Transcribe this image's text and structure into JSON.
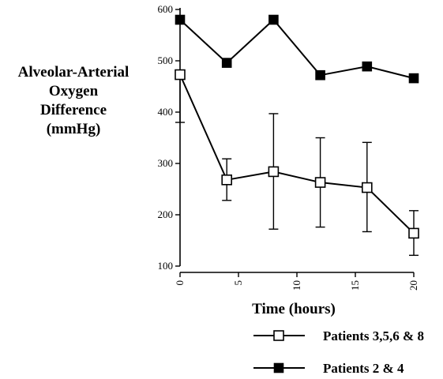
{
  "chart_data": {
    "type": "line",
    "title": "",
    "xlabel": "Time (hours)",
    "ylabel_lines": [
      "Alveolar-Arterial",
      "Oxygen",
      "Difference",
      "(mmHg)"
    ],
    "xlim": [
      0,
      20
    ],
    "ylim": [
      100,
      600
    ],
    "xticks": [
      0,
      5,
      10,
      15,
      20
    ],
    "yticks": [
      100,
      200,
      300,
      400,
      500,
      600
    ],
    "grid": false,
    "legend_position": "bottom-right",
    "series": [
      {
        "name": "Patients 3,5,6 & 8",
        "marker": "open-square",
        "x": [
          0,
          4,
          8,
          12,
          16,
          20
        ],
        "y": [
          473,
          268,
          284,
          263,
          253,
          164
        ],
        "error_low": [
          380,
          228,
          172,
          176,
          167,
          121
        ],
        "error_high": [
          null,
          309,
          397,
          350,
          341,
          208
        ]
      },
      {
        "name": "Patients 2 & 4",
        "marker": "filled-square",
        "x": [
          0,
          4,
          8,
          12,
          16,
          20
        ],
        "y": [
          580,
          496,
          580,
          472,
          489,
          466
        ]
      }
    ]
  }
}
